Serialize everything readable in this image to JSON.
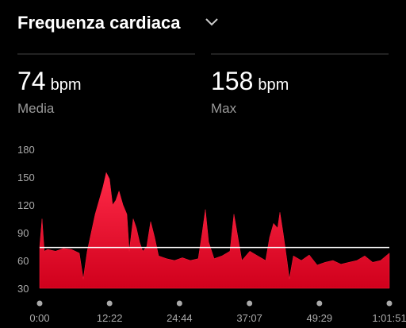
{
  "header": {
    "title": "Frequenza cardiaca"
  },
  "stats": [
    {
      "value": 74,
      "unit": "bpm",
      "label": "Media"
    },
    {
      "value": 158,
      "unit": "bpm",
      "label": "Max"
    }
  ],
  "chart_data": {
    "type": "area",
    "x": [
      0,
      25,
      50,
      84,
      168,
      252,
      337,
      421,
      463,
      505,
      547,
      589,
      631,
      673,
      707,
      741,
      774,
      808,
      842,
      884,
      926,
      951,
      993,
      1027,
      1060,
      1094,
      1136,
      1178,
      1220,
      1262,
      1346,
      1431,
      1515,
      1599,
      1683,
      1725,
      1759,
      1793,
      1851,
      1935,
      2020,
      2062,
      2104,
      2146,
      2230,
      2314,
      2398,
      2440,
      2482,
      2525,
      2550,
      2583,
      2625,
      2650,
      2693,
      2777,
      2861,
      2945,
      3029,
      3113,
      3198,
      3282,
      3366,
      3450,
      3534,
      3618,
      3711
    ],
    "values": [
      75,
      105,
      70,
      72,
      70,
      73,
      72,
      68,
      40,
      70,
      90,
      110,
      125,
      140,
      155,
      148,
      120,
      125,
      135,
      120,
      110,
      70,
      105,
      95,
      80,
      70,
      75,
      102,
      85,
      65,
      62,
      60,
      63,
      60,
      62,
      90,
      115,
      80,
      62,
      65,
      70,
      110,
      85,
      60,
      70,
      65,
      60,
      85,
      100,
      95,
      112,
      90,
      60,
      40,
      65,
      60,
      66,
      55,
      58,
      60,
      56,
      58,
      60,
      65,
      58,
      60,
      68
    ],
    "color": "#ff1e3c",
    "xlim": [
      0,
      3711
    ],
    "ylim": [
      30,
      180
    ],
    "yticks": [
      30,
      60,
      90,
      120,
      150,
      180
    ],
    "xticks": [
      {
        "value": 0,
        "label": "0:00"
      },
      {
        "value": 742,
        "label": "12:22"
      },
      {
        "value": 1484,
        "label": "24:44"
      },
      {
        "value": 2227,
        "label": "37:07"
      },
      {
        "value": 2969,
        "label": "49:29"
      },
      {
        "value": 3711,
        "label": "1:01:51"
      }
    ]
  }
}
